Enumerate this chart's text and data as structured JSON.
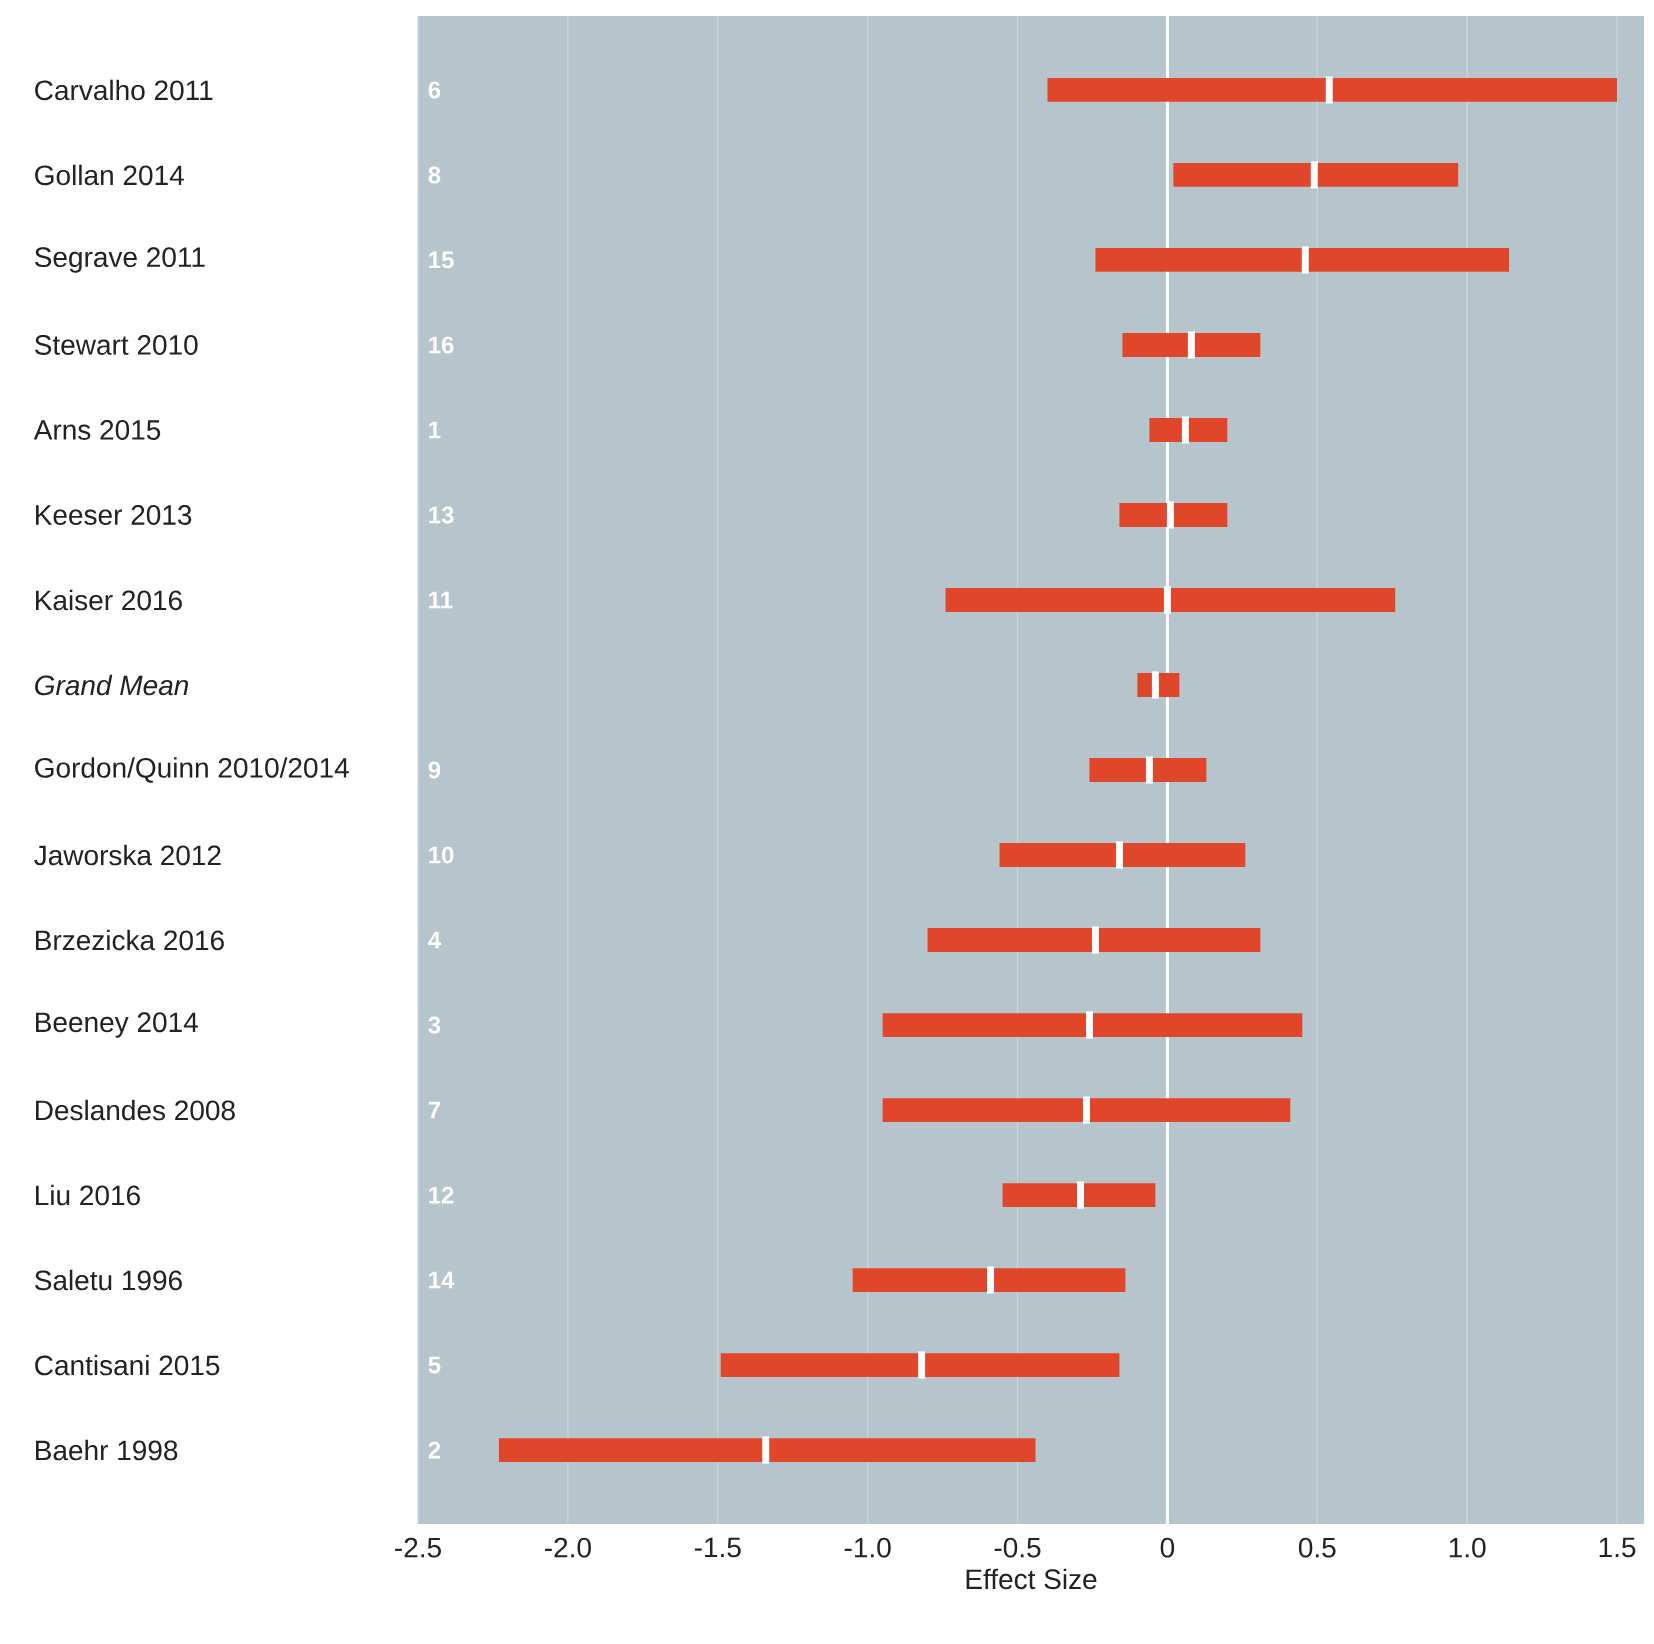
{
  "chart_data": {
    "type": "box",
    "orientation": "horizontal",
    "xlabel": "Effect Size",
    "categories": [
      "Carvalho 2011",
      "Gollan 2014",
      "Segrave 2011",
      "Stewart 2010",
      "Arns 2015",
      "Keeser 2013",
      "Kaiser 2016",
      "Grand Mean",
      "Gordon/Quinn 2010/2014",
      "Jaworska 2012",
      "Brzezicka 2016",
      "Beeney 2014",
      "Deslandes 2008",
      "Liu 2016",
      "Saletu 1996",
      "Cantisani 2015",
      "Baehr 1998"
    ],
    "series": [
      {
        "color": "#e0472a",
        "boxes": [
          {
            "low": -0.4,
            "q1": -0.4,
            "median": 0.54,
            "q3": 1.5,
            "high": 1.5
          },
          {
            "low": 0.02,
            "q1": 0.02,
            "median": 0.49,
            "q3": 0.97,
            "high": 0.97
          },
          {
            "low": -0.24,
            "q1": -0.24,
            "median": 0.46,
            "q3": 1.14,
            "high": 1.14
          },
          {
            "low": -0.15,
            "q1": -0.15,
            "median": 0.08,
            "q3": 0.31,
            "high": 0.31
          },
          {
            "low": -0.06,
            "q1": -0.06,
            "median": 0.06,
            "q3": 0.2,
            "high": 0.2
          },
          {
            "low": -0.16,
            "q1": -0.16,
            "median": 0.01,
            "q3": 0.2,
            "high": 0.2
          },
          {
            "low": -0.74,
            "q1": -0.74,
            "median": 0.0,
            "q3": 0.76,
            "high": 0.76
          },
          {
            "low": -0.1,
            "q1": -0.1,
            "median": -0.04,
            "q3": 0.04,
            "high": 0.04
          },
          {
            "low": -0.26,
            "q1": -0.26,
            "median": -0.06,
            "q3": 0.13,
            "high": 0.13
          },
          {
            "low": -0.56,
            "q1": -0.56,
            "median": -0.16,
            "q3": 0.26,
            "high": 0.26
          },
          {
            "low": -0.8,
            "q1": -0.8,
            "median": -0.24,
            "q3": 0.31,
            "high": 0.31
          },
          {
            "low": -0.95,
            "q1": -0.95,
            "median": -0.26,
            "q3": 0.45,
            "high": 0.45
          },
          {
            "low": -0.95,
            "q1": -0.95,
            "median": -0.27,
            "q3": 0.41,
            "high": 0.41
          },
          {
            "low": -0.55,
            "q1": -0.55,
            "median": -0.29,
            "q3": -0.04,
            "high": -0.04
          },
          {
            "low": -1.05,
            "q1": -1.05,
            "median": -0.59,
            "q3": -0.14,
            "high": -0.14
          },
          {
            "low": -1.49,
            "q1": -1.49,
            "median": -0.82,
            "q3": -0.16,
            "high": -0.16
          },
          {
            "low": -2.23,
            "q1": -2.23,
            "median": -1.34,
            "q3": -0.44,
            "high": -0.44
          }
        ]
      }
    ],
    "annotations": [
      "6",
      "8",
      "15",
      "16",
      "1",
      "13",
      "11",
      null,
      "9",
      "10",
      "4",
      "3",
      "7",
      "12",
      "14",
      "5",
      "2"
    ],
    "xlim": [
      -2.5,
      1.59
    ],
    "xticks": [
      {
        "value": -2.5,
        "label": "-2.5"
      },
      {
        "value": -2.0,
        "label": "-2.0"
      },
      {
        "value": -1.5,
        "label": "-1.5"
      },
      {
        "value": -1.0,
        "label": "-1.0"
      },
      {
        "value": -0.5,
        "label": "-0.5"
      },
      0,
      {
        "value": 0.5,
        "label": "0.5"
      },
      {
        "value": 1.0,
        "label": "1.0"
      },
      {
        "value": 1.5,
        "label": "1.5"
      }
    ],
    "grid": "x",
    "ref_lines": [
      {
        "axis": "x",
        "value": 0,
        "color": "#ffffff"
      }
    ]
  }
}
